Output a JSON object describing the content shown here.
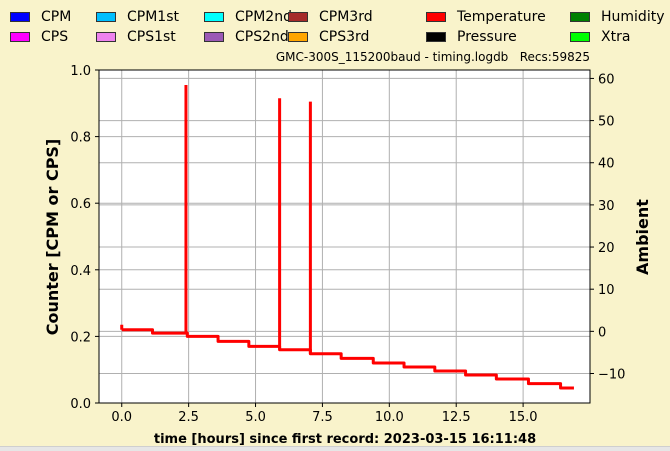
{
  "legend": [
    {
      "label": "CPM",
      "color": "#0000ff"
    },
    {
      "label": "CPM1st",
      "color": "#00bfff"
    },
    {
      "label": "CPM2nd",
      "color": "#00ffff"
    },
    {
      "label": "CPM3rd",
      "color": "#a52a2a"
    },
    {
      "label": "Temperature",
      "color": "#ff0000"
    },
    {
      "label": "Humidity",
      "color": "#008000"
    },
    {
      "label": "CPS",
      "color": "#ff00ff"
    },
    {
      "label": "CPS1st",
      "color": "#ee82ee"
    },
    {
      "label": "CPS2nd",
      "color": "#9b59b6"
    },
    {
      "label": "CPS3rd",
      "color": "#ffa500"
    },
    {
      "label": "Pressure",
      "color": "#000000"
    },
    {
      "label": "Xtra",
      "color": "#00ff00"
    }
  ],
  "title": "GMC-300S_115200baud - timing.logdb   Recs:59825",
  "chart_data": {
    "type": "line",
    "xlabel": "time [hours] since first record: 2023-03-15 16:11:48",
    "ylabel": "Counter  [CPM or CPS]",
    "y2label": "Ambient",
    "xlim": [
      -0.85,
      17.5
    ],
    "ylim": [
      0.0,
      1.0
    ],
    "y2lim": [
      -17.0,
      62.0
    ],
    "xticks": [
      0.0,
      2.5,
      5.0,
      7.5,
      10.0,
      12.5,
      15.0
    ],
    "xtick_labels": [
      "0.0",
      "2.5",
      "5.0",
      "7.5",
      "10.0",
      "12.5",
      "15.0"
    ],
    "yticks": [
      0.0,
      0.2,
      0.4,
      0.6,
      0.8,
      1.0
    ],
    "ytick_labels": [
      "0.0",
      "0.2",
      "0.4",
      "0.6",
      "0.8",
      "1.0"
    ],
    "y2ticks": [
      -10,
      0,
      10,
      20,
      30,
      40,
      50,
      60
    ],
    "y2tick_labels": [
      "−10",
      "0",
      "10",
      "20",
      "30",
      "40",
      "50",
      "60"
    ],
    "grid": true,
    "series": [
      {
        "color": "#ff0000",
        "steps": [
          [
            0.0,
            0.22
          ],
          [
            1.15,
            0.21
          ],
          [
            2.45,
            0.2
          ],
          [
            3.6,
            0.185
          ],
          [
            4.75,
            0.17
          ],
          [
            5.9,
            0.16
          ],
          [
            7.05,
            0.148
          ],
          [
            8.2,
            0.134
          ],
          [
            9.4,
            0.12
          ],
          [
            10.55,
            0.108
          ],
          [
            11.7,
            0.096
          ],
          [
            12.85,
            0.084
          ],
          [
            14.0,
            0.072
          ],
          [
            15.2,
            0.058
          ],
          [
            16.4,
            0.045
          ],
          [
            16.9,
            0.045
          ]
        ],
        "spikes": [
          {
            "x": 2.4,
            "y": 0.955
          },
          {
            "x": 5.9,
            "y": 0.915
          },
          {
            "x": 7.05,
            "y": 0.905
          }
        ],
        "start_point": {
          "x": 0.0,
          "y": 0.235
        }
      }
    ]
  }
}
